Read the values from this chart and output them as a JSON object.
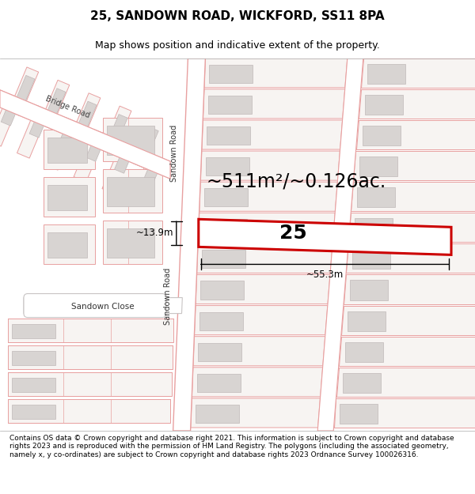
{
  "title": "25, SANDOWN ROAD, WICKFORD, SS11 8PA",
  "subtitle": "Map shows position and indicative extent of the property.",
  "area_text": "~511m²/~0.126ac.",
  "width_label": "~55.3m",
  "height_label": "~13.9m",
  "property_number": "25",
  "road_label_sandown": "Sandown Road",
  "road_label_bridge": "Bridge Road",
  "close_label": "Sandown Close",
  "footer": "Contains OS data © Crown copyright and database right 2021. This information is subject to Crown copyright and database rights 2023 and is reproduced with the permission of HM Land Registry. The polygons (including the associated geometry, namely x, y co-ordinates) are subject to Crown copyright and database rights 2023 Ordnance Survey 100026316.",
  "bg_color": "#ffffff",
  "map_bg": "#ffffff",
  "plot_fill": "#f7f4f2",
  "plot_ec": "#e8a0a0",
  "building_fill": "#d8d4d2",
  "building_ec": "#c0b8b8",
  "road_fill": "#ffffff",
  "road_ec": "#e8a0a0",
  "property_fill": "#ffffff",
  "property_outline": "#cc0000",
  "dim_color": "#000000",
  "road_gray": "#c8c4c4",
  "title_fontsize": 11,
  "subtitle_fontsize": 9,
  "area_fontsize": 17,
  "label_fontsize": 8,
  "road_label_fontsize": 7,
  "footer_fontsize": 6.5,
  "property_lw": 2.2
}
